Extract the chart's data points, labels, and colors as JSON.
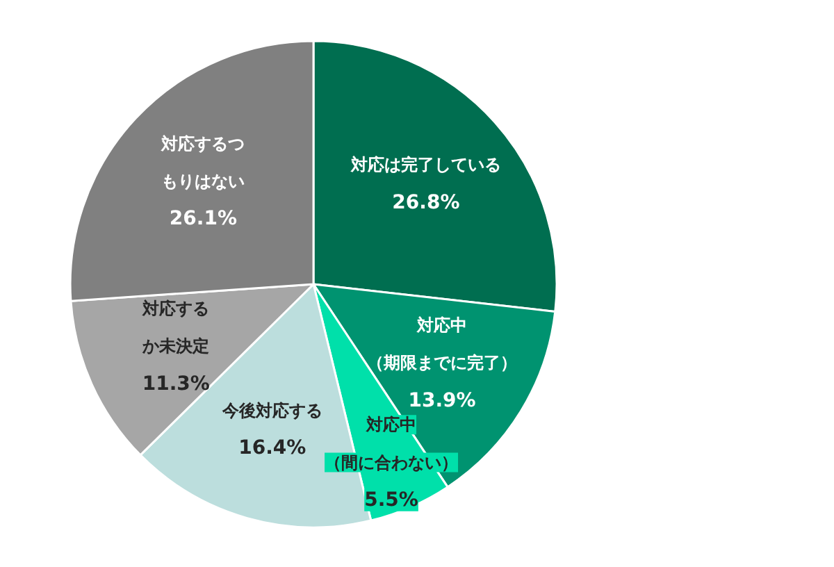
{
  "chart_data": {
    "type": "pie",
    "categories": [
      "対応は完了している",
      "対応中（期限までに完了）",
      "対応中（間に合わない）",
      "今後対応する",
      "対応するか未決定",
      "対応するつもりはない"
    ],
    "values": [
      26.8,
      13.9,
      5.5,
      16.4,
      11.3,
      26.1
    ],
    "value_labels": [
      "26.8%",
      "13.9%",
      "5.5%",
      "16.4%",
      "11.3%",
      "26.1%"
    ],
    "colors": [
      "#006e50",
      "#009370",
      "#00e0aa",
      "#bcdedd",
      "#a6a6a6",
      "#808080"
    ]
  }
}
